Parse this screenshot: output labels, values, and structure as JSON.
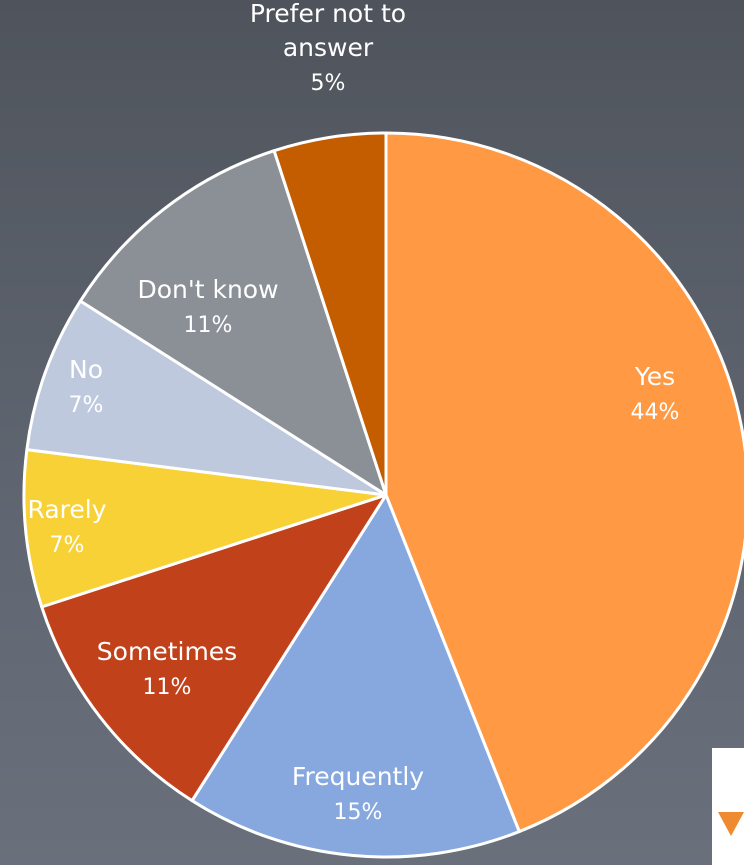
{
  "chart_data": {
    "type": "pie",
    "title": "",
    "slices": [
      {
        "label": "Yes",
        "percent_label": "44%",
        "value": 44,
        "color": "#ff9944",
        "label_color": "#ffffff"
      },
      {
        "label": "Frequently",
        "percent_label": "15%",
        "value": 15,
        "color": "#86a8df",
        "label_color": "#ffffff"
      },
      {
        "label": "Sometimes",
        "percent_label": "11%",
        "value": 11,
        "color": "#c1411b",
        "label_color": "#ffffff"
      },
      {
        "label": "Rarely",
        "percent_label": "7%",
        "value": 7,
        "color": "#f8d136",
        "label_color": "#ffffff"
      },
      {
        "label": "No",
        "percent_label": "7%",
        "value": 7,
        "color": "#bec9de",
        "label_color": "#ffffff"
      },
      {
        "label": "Don't know",
        "percent_label": "11%",
        "value": 11,
        "color": "#8b9096",
        "label_color": "#ffffff"
      },
      {
        "label": "Prefer not to answer",
        "percent_label": "5%",
        "value": 5,
        "color": "#c45d00",
        "label_color": "#ffffff"
      }
    ],
    "legend": "none",
    "slice_border_color": "#ffffff"
  }
}
